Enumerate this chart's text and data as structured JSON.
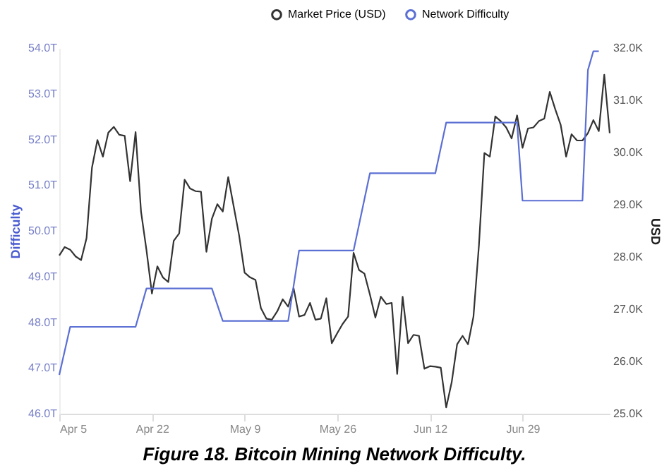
{
  "chart_data": {
    "type": "line",
    "title": "Figure 18. Bitcoin Mining Network Difficulty.",
    "ylabel": "Difficulty",
    "y2label": "USD",
    "legend": "top right",
    "marker": "none",
    "line_style": "solid",
    "xlim": [
      "--04-05",
      "--07-15"
    ],
    "xticks": [
      {
        "value": "--04-05",
        "label": "Apr 5"
      },
      {
        "value": "--04-22",
        "label": "Apr 22"
      },
      {
        "value": "--05-09",
        "label": "May 9"
      },
      {
        "value": "--05-26",
        "label": "May 26"
      },
      {
        "value": "--06-12",
        "label": "Jun 12"
      },
      {
        "value": "--06-29",
        "label": "Jun 29"
      }
    ],
    "ylim": [
      46,
      54
    ],
    "yticks": [
      {
        "value": 46,
        "label": "46.0T"
      },
      {
        "value": 47,
        "label": "47.0T"
      },
      {
        "value": 48,
        "label": "48.0T"
      },
      {
        "value": 49,
        "label": "49.0T"
      },
      {
        "value": 50,
        "label": "50.0T"
      },
      {
        "value": 51,
        "label": "51.0T"
      },
      {
        "value": 52,
        "label": "52.0T"
      },
      {
        "value": 53,
        "label": "53.0T"
      },
      {
        "value": 54,
        "label": "54.0T"
      }
    ],
    "y2lim": [
      25,
      32
    ],
    "y2ticks": [
      {
        "value": 25,
        "label": "25.0K"
      },
      {
        "value": 26,
        "label": "26.0K"
      },
      {
        "value": 27,
        "label": "27.0K"
      },
      {
        "value": 28,
        "label": "28.0K"
      },
      {
        "value": 29,
        "label": "29.0K"
      },
      {
        "value": 30,
        "label": "30.0K"
      },
      {
        "value": 31,
        "label": "31.0K"
      },
      {
        "value": 32,
        "label": "32.0K"
      }
    ],
    "series": [
      {
        "name": "Market Price (USD)",
        "color": "#333333",
        "axis": "y2",
        "x": [
          "--04-05",
          "--04-06",
          "--04-07",
          "--04-08",
          "--04-09",
          "--04-10",
          "--04-11",
          "--04-12",
          "--04-13",
          "--04-14",
          "--04-15",
          "--04-16",
          "--04-17",
          "--04-18",
          "--04-19",
          "--04-20",
          "--04-21",
          "--04-22",
          "--04-23",
          "--04-24",
          "--04-25",
          "--04-26",
          "--04-27",
          "--04-28",
          "--04-29",
          "--04-30",
          "--05-01",
          "--05-02",
          "--05-03",
          "--05-04",
          "--05-05",
          "--05-06",
          "--05-07",
          "--05-08",
          "--05-09",
          "--05-10",
          "--05-11",
          "--05-12",
          "--05-13",
          "--05-14",
          "--05-15",
          "--05-16",
          "--05-17",
          "--05-18",
          "--05-19",
          "--05-20",
          "--05-21",
          "--05-22",
          "--05-23",
          "--05-24",
          "--05-25",
          "--05-26",
          "--05-27",
          "--05-28",
          "--05-29",
          "--05-30",
          "--05-31",
          "--06-01",
          "--06-02",
          "--06-03",
          "--06-04",
          "--06-05",
          "--06-06",
          "--06-07",
          "--06-08",
          "--06-09",
          "--06-10",
          "--06-11",
          "--06-12",
          "--06-13",
          "--06-14",
          "--06-15",
          "--06-16",
          "--06-17",
          "--06-18",
          "--06-19",
          "--06-20",
          "--06-21",
          "--06-22",
          "--06-23",
          "--06-24",
          "--06-25",
          "--06-26",
          "--06-27",
          "--06-28",
          "--06-29",
          "--06-30",
          "--07-01",
          "--07-02",
          "--07-03",
          "--07-04",
          "--07-05",
          "--07-06",
          "--07-07",
          "--07-08",
          "--07-09",
          "--07-10",
          "--07-11",
          "--07-12",
          "--07-13",
          "--07-14",
          "--07-15"
        ],
        "values": [
          28.03,
          28.19,
          28.14,
          28.01,
          27.94,
          28.36,
          29.71,
          30.24,
          29.92,
          30.38,
          30.49,
          30.34,
          30.32,
          29.45,
          30.39,
          28.87,
          28.13,
          27.3,
          27.82,
          27.61,
          27.52,
          28.31,
          28.45,
          29.48,
          29.31,
          29.26,
          29.25,
          28.1,
          28.73,
          29.01,
          28.87,
          29.53,
          28.97,
          28.41,
          27.7,
          27.61,
          27.56,
          27.02,
          26.82,
          26.8,
          26.96,
          27.19,
          27.05,
          27.4,
          26.86,
          26.89,
          27.12,
          26.8,
          26.82,
          27.21,
          26.35,
          26.54,
          26.72,
          26.86,
          28.08,
          27.75,
          27.68,
          27.28,
          26.84,
          27.24,
          27.1,
          27.12,
          25.76,
          27.24,
          26.35,
          26.51,
          26.49,
          25.86,
          25.91,
          25.9,
          25.88,
          25.12,
          25.6,
          26.33,
          26.49,
          26.33,
          26.86,
          28.22,
          29.99,
          29.92,
          30.69,
          30.6,
          30.48,
          30.27,
          30.71,
          30.09,
          30.46,
          30.48,
          30.6,
          30.65,
          31.16,
          30.83,
          30.53,
          29.92,
          30.35,
          30.23,
          30.23,
          30.37,
          30.62,
          30.41,
          31.49,
          30.37
        ]
      },
      {
        "name": "Network Difficulty",
        "color": "#5b6fd4",
        "x": [
          "--04-05",
          "--04-07",
          "--04-19",
          "--04-21",
          "--05-03",
          "--05-05",
          "--05-17",
          "--05-19",
          "--05-29",
          "--06-01",
          "--06-13",
          "--06-15",
          "--06-28",
          "--06-29",
          "--07-10",
          "--07-11",
          "--07-12",
          "--07-13"
        ],
        "values": [
          46.85,
          47.9,
          47.9,
          48.74,
          48.74,
          48.03,
          48.03,
          49.57,
          49.57,
          51.26,
          51.26,
          52.37,
          52.37,
          50.66,
          50.66,
          53.52,
          53.93,
          53.93
        ]
      }
    ]
  }
}
